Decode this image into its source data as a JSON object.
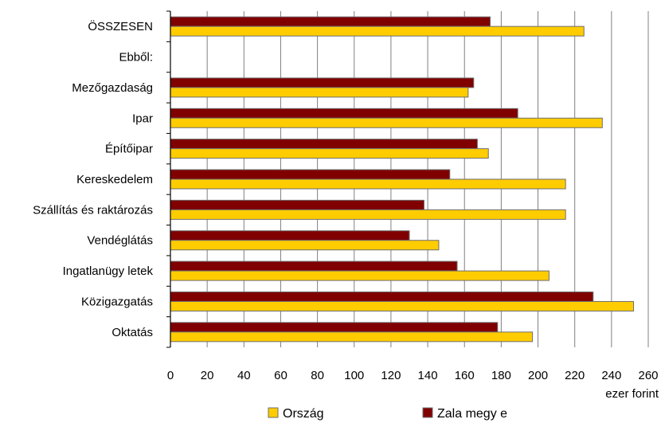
{
  "chart_data": {
    "type": "bar",
    "orientation": "horizontal",
    "categories": [
      "ÖSSZESEN",
      "Ebből:",
      "Mezőgazdaság",
      "Ipar",
      "Építőipar",
      "Kereskedelem",
      "Szállítás és raktározás",
      "Vendéglátás",
      "Ingatlanügy letek",
      "Közigazgatás",
      "Oktatás"
    ],
    "series": [
      {
        "name": "Zala megy e",
        "color": "#800000",
        "values": [
          174,
          null,
          165,
          189,
          167,
          152,
          138,
          130,
          156,
          230,
          178
        ]
      },
      {
        "name": "Ország",
        "color": "#ffcc00",
        "values": [
          225,
          null,
          162,
          235,
          173,
          215,
          215,
          146,
          206,
          252,
          197
        ]
      }
    ],
    "xlim": [
      0,
      260
    ],
    "xticks": [
      "0",
      "20",
      "40",
      "60",
      "80",
      "100",
      "120",
      "140",
      "160",
      "180",
      "200",
      "220",
      "240",
      "260"
    ],
    "unit_label": "ezer forint",
    "grid": true,
    "legend_position": "bottom",
    "legend_order": [
      "Ország",
      "Zala megy e"
    ]
  }
}
